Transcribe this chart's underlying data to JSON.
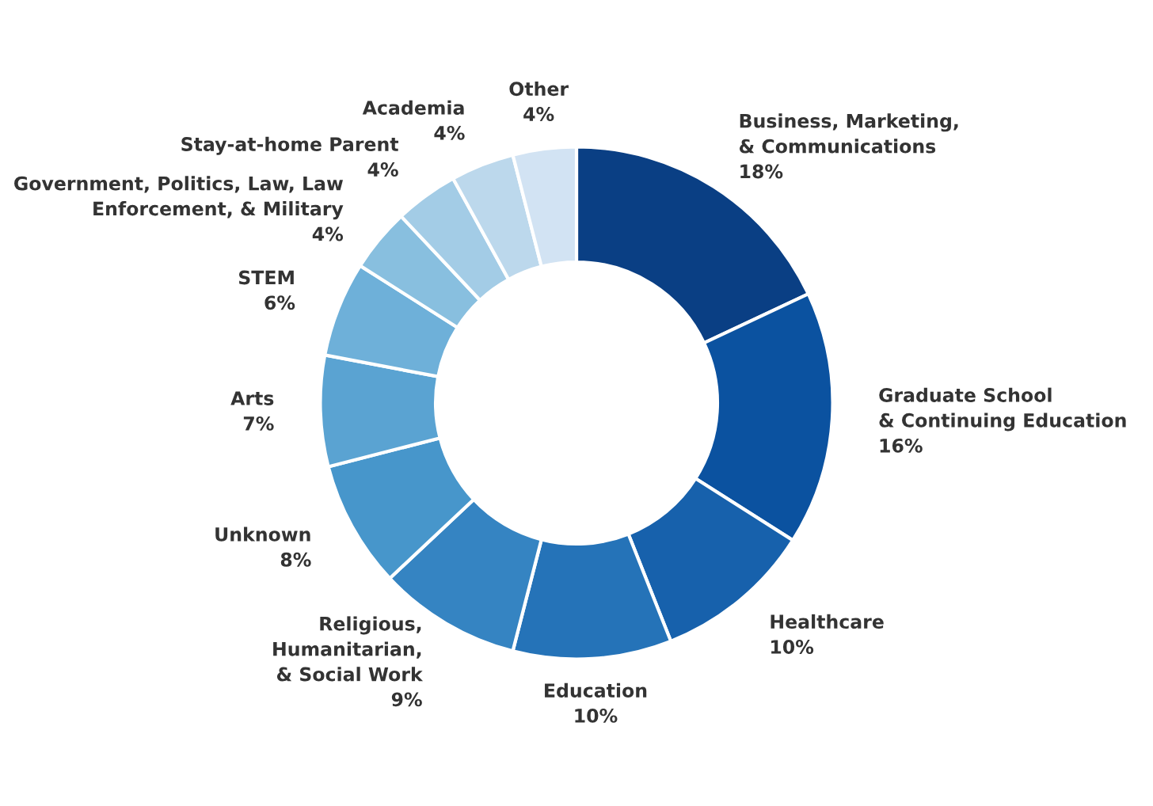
{
  "chart_data": {
    "type": "donut",
    "categories": [
      "Business, Marketing,\n& Communications",
      "Graduate School\n& Continuing Education",
      "Healthcare",
      "Education",
      "Religious,\nHumanitarian,\n& Social Work",
      "Unknown",
      "Arts",
      "STEM",
      "Government, Politics, Law, Law\nEnforcement, & Military",
      "Stay-at-home Parent",
      "Academia",
      "Other"
    ],
    "values": [
      18,
      16,
      10,
      10,
      9,
      8,
      7,
      6,
      4,
      4,
      4,
      4
    ],
    "colors": [
      "#0a3f84",
      "#0b52a0",
      "#1761ac",
      "#2573b8",
      "#3584c2",
      "#4796cb",
      "#5aa3d2",
      "#6eb0d9",
      "#88bfdf",
      "#a3cce6",
      "#bcd8ec",
      "#d2e3f3"
    ],
    "value_labels": [
      "18%",
      "16%",
      "10%",
      "10%",
      "9%",
      "8%",
      "7%",
      "6%",
      "4%",
      "4%",
      "4%",
      "4%"
    ],
    "legend": false
  }
}
